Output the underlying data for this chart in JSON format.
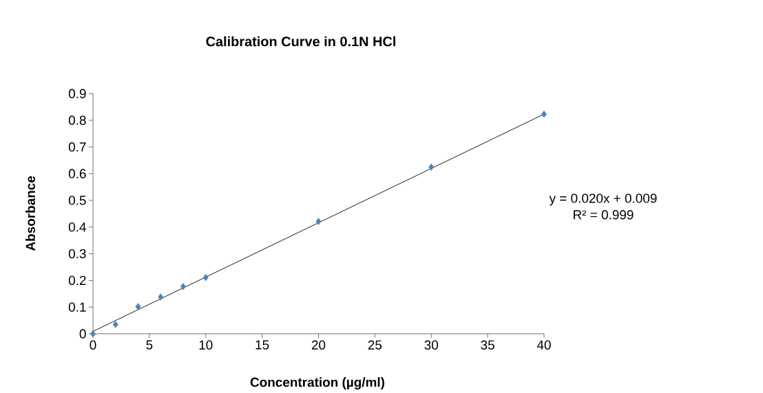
{
  "chart_data": {
    "type": "scatter",
    "title": "Calibration Curve in 0.1N HCl",
    "xlabel": "Concentration (µg/ml)",
    "ylabel": "Absorbance",
    "xlim": [
      0,
      40
    ],
    "xticks": [
      0,
      5,
      10,
      15,
      20,
      25,
      30,
      35,
      40
    ],
    "ylim": [
      0,
      0.9
    ],
    "yticks": [
      0,
      0.1,
      0.2,
      0.3,
      0.4,
      0.5,
      0.6,
      0.7,
      0.8,
      0.9
    ],
    "x": [
      0,
      2,
      4,
      6,
      8,
      10,
      20,
      30,
      40
    ],
    "series": [
      {
        "color": "#4f81bd",
        "marker": "diamond",
        "values": [
          0,
          0.035,
          0.102,
          0.138,
          0.177,
          0.211,
          0.421,
          0.625,
          0.823
        ]
      },
      {
        "type": "line",
        "color": "#000000",
        "marker": "none",
        "x": [
          0,
          40
        ],
        "values": [
          0.009,
          0.823
        ]
      }
    ],
    "annotations": [
      "y = 0.020x + 0.009",
      "R² = 0.999"
    ],
    "grid": false
  }
}
